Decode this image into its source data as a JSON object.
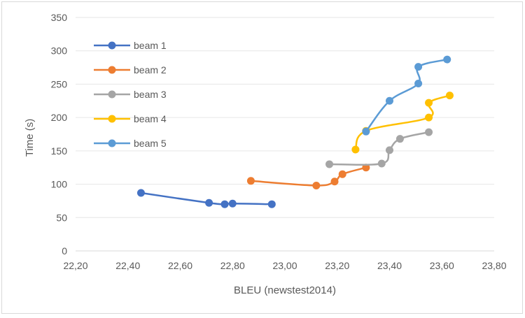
{
  "chart_data": {
    "type": "line",
    "title": "",
    "xlabel": "BLEU (newstest2014)",
    "ylabel": "Time (s)",
    "xlim": [
      22.2,
      23.8
    ],
    "ylim": [
      0,
      350
    ],
    "xticks": [
      22.2,
      22.4,
      22.6,
      22.8,
      23.0,
      23.2,
      23.4,
      23.6,
      23.8
    ],
    "xtick_labels": [
      "22,20",
      "22,40",
      "22,60",
      "22,80",
      "23,00",
      "23,20",
      "23,40",
      "23,60",
      "23,80"
    ],
    "yticks": [
      0,
      50,
      100,
      150,
      200,
      250,
      300,
      350
    ],
    "ytick_labels": [
      "0",
      "50",
      "100",
      "150",
      "200",
      "250",
      "300",
      "350"
    ],
    "grid": "horizontal",
    "legend": "top-left",
    "series": [
      {
        "name": "beam 1",
        "color": "#4472c4",
        "points": [
          [
            22.45,
            87
          ],
          [
            22.71,
            72
          ],
          [
            22.77,
            70
          ],
          [
            22.8,
            71
          ],
          [
            22.95,
            70
          ]
        ]
      },
      {
        "name": "beam 2",
        "color": "#ed7d31",
        "points": [
          [
            22.87,
            105
          ],
          [
            23.12,
            98
          ],
          [
            23.19,
            104
          ],
          [
            23.22,
            115
          ],
          [
            23.31,
            125
          ]
        ]
      },
      {
        "name": "beam 3",
        "color": "#a5a5a5",
        "points": [
          [
            23.17,
            130
          ],
          [
            23.37,
            131
          ],
          [
            23.4,
            151
          ],
          [
            23.44,
            168
          ],
          [
            23.55,
            178
          ]
        ]
      },
      {
        "name": "beam 4",
        "color": "#ffc000",
        "points": [
          [
            23.27,
            152
          ],
          [
            23.31,
            180
          ],
          [
            23.55,
            200
          ],
          [
            23.55,
            222
          ],
          [
            23.63,
            233
          ]
        ]
      },
      {
        "name": "beam 5",
        "color": "#5b9bd5",
        "points": [
          [
            23.31,
            179
          ],
          [
            23.4,
            225
          ],
          [
            23.51,
            251
          ],
          [
            23.51,
            276
          ],
          [
            23.62,
            287
          ]
        ]
      }
    ]
  }
}
